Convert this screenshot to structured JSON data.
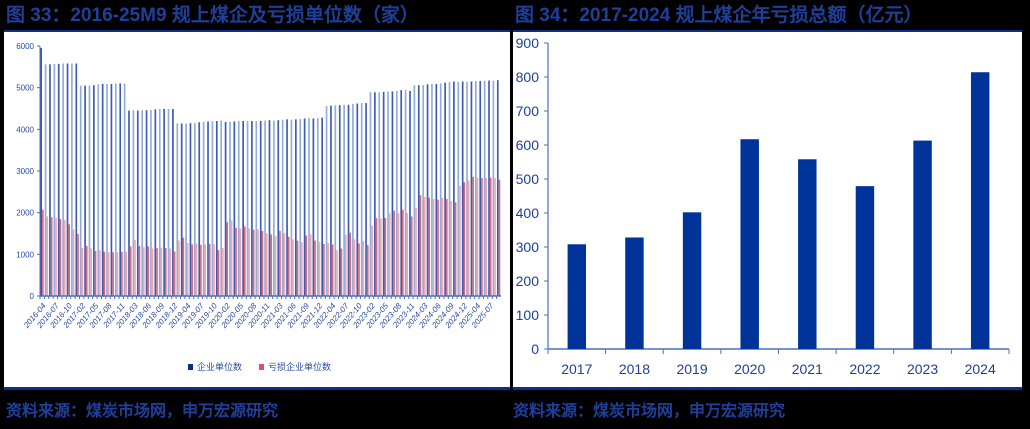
{
  "left": {
    "title": "图 33：2016-25M9 规上煤企及亏损单位数（家）",
    "source": "资料来源：煤炭市场网，申万宏源研究"
  },
  "right": {
    "title": "图 34：2017-2024 规上煤企年亏损总额（亿元）",
    "source": "资料来源：煤炭市场网，申万宏源研究"
  },
  "colors": {
    "title_blue": "#1f3f9a",
    "enterprise_bar": "#3b5bb5",
    "enterprise_bar_light": "#95abd8",
    "loss_bar": "#d96a7a",
    "loss_bar_light": "#f0a9b2",
    "annual_loss_bar": "#003399",
    "axis": "#4a6fc4"
  },
  "chart_data": [
    {
      "type": "bar",
      "title": "2016-25M9 规上煤企及亏损单位数（家）",
      "xlabel": "",
      "ylabel": "",
      "ylim": [
        0,
        6000
      ],
      "yticks": [
        0,
        1000,
        2000,
        3000,
        4000,
        5000,
        6000
      ],
      "legend": [
        "企业单位数",
        "亏损企业单位数"
      ],
      "legend_position": "bottom",
      "grid": false,
      "tick_labels": [
        "2016-04",
        "2016-07",
        "2016-10",
        "2017-02",
        "2017-05",
        "2017-08",
        "2017-11",
        "2018-03",
        "2018-06",
        "2018-09",
        "2018-12",
        "2019-04",
        "2019-07",
        "2019-10",
        "2020-02",
        "2020-05",
        "2020-08",
        "2020-11",
        "2021-03",
        "2021-06",
        "2021-09",
        "2021-12",
        "2022-04",
        "2022-07",
        "2022-10",
        "2023-02",
        "2023-05",
        "2023-08",
        "2023-11",
        "2024-03",
        "2024-06",
        "2024-09",
        "2024-12",
        "2025-04",
        "2025-07"
      ],
      "categories": [
        "2016-04",
        "2016-05",
        "2016-06",
        "2016-07",
        "2016-08",
        "2016-09",
        "2016-10",
        "2016-11",
        "2016-12",
        "2017-02",
        "2017-03",
        "2017-04",
        "2017-05",
        "2017-06",
        "2017-07",
        "2017-08",
        "2017-09",
        "2017-10",
        "2017-11",
        "2017-12",
        "2018-02",
        "2018-03",
        "2018-04",
        "2018-05",
        "2018-06",
        "2018-07",
        "2018-08",
        "2018-09",
        "2018-10",
        "2018-11",
        "2018-12",
        "2019-02",
        "2019-03",
        "2019-04",
        "2019-05",
        "2019-06",
        "2019-07",
        "2019-08",
        "2019-09",
        "2019-10",
        "2019-11",
        "2019-12",
        "2020-02",
        "2020-03",
        "2020-04",
        "2020-05",
        "2020-06",
        "2020-07",
        "2020-08",
        "2020-09",
        "2020-10",
        "2020-11",
        "2020-12",
        "2021-02",
        "2021-03",
        "2021-04",
        "2021-05",
        "2021-06",
        "2021-07",
        "2021-08",
        "2021-09",
        "2021-10",
        "2021-11",
        "2021-12",
        "2022-02",
        "2022-03",
        "2022-04",
        "2022-05",
        "2022-06",
        "2022-07",
        "2022-08",
        "2022-09",
        "2022-10",
        "2022-11",
        "2022-12",
        "2023-02",
        "2023-03",
        "2023-04",
        "2023-05",
        "2023-06",
        "2023-07",
        "2023-08",
        "2023-09",
        "2023-10",
        "2023-11",
        "2023-12",
        "2024-02",
        "2024-03",
        "2024-04",
        "2024-05",
        "2024-06",
        "2024-07",
        "2024-08",
        "2024-09",
        "2024-10",
        "2024-11",
        "2024-12",
        "2025-02",
        "2025-03",
        "2025-04",
        "2025-05",
        "2025-06",
        "2025-07",
        "2025-08",
        "2025-09"
      ],
      "series": [
        {
          "name": "企业单位数",
          "values": [
            5950,
            5560,
            5560,
            5570,
            5570,
            5580,
            5580,
            5580,
            5580,
            5050,
            5050,
            5050,
            5060,
            5080,
            5090,
            5090,
            5090,
            5100,
            5100,
            5100,
            4450,
            4460,
            4450,
            4460,
            4460,
            4460,
            4480,
            4490,
            4490,
            4490,
            4490,
            4140,
            4140,
            4140,
            4150,
            4150,
            4170,
            4180,
            4190,
            4200,
            4200,
            4210,
            4180,
            4180,
            4190,
            4200,
            4200,
            4200,
            4200,
            4200,
            4200,
            4210,
            4220,
            4210,
            4220,
            4230,
            4240,
            4230,
            4240,
            4250,
            4260,
            4270,
            4260,
            4270,
            4280,
            4560,
            4570,
            4580,
            4580,
            4590,
            4590,
            4610,
            4620,
            4630,
            4630,
            4890,
            4890,
            4890,
            4900,
            4910,
            4910,
            4920,
            4940,
            4950,
            4920,
            5060,
            5060,
            5060,
            5080,
            5090,
            5090,
            5100,
            5120,
            5140,
            5150,
            5140,
            5150,
            5140,
            5150,
            5160,
            5160,
            5170,
            5170,
            5170,
            5180
          ],
          "_note": "first bar is 2016-04 (~5950)"
        },
        {
          "name": "亏损企业单位数",
          "values": [
            2070,
            1910,
            1890,
            1880,
            1850,
            1820,
            1720,
            1600,
            1490,
            1150,
            1200,
            1140,
            1080,
            1100,
            1060,
            1050,
            1050,
            1050,
            1060,
            1070,
            1190,
            1340,
            1200,
            1170,
            1190,
            1140,
            1150,
            1160,
            1150,
            1140,
            1070,
            1330,
            1400,
            1270,
            1240,
            1260,
            1230,
            1240,
            1250,
            1240,
            1100,
            1150,
            1770,
            1810,
            1640,
            1620,
            1670,
            1620,
            1590,
            1600,
            1560,
            1500,
            1480,
            1440,
            1560,
            1510,
            1420,
            1360,
            1330,
            1290,
            1450,
            1480,
            1330,
            1290,
            1250,
            1270,
            1240,
            1100,
            1140,
            1470,
            1520,
            1360,
            1260,
            1320,
            1220,
            1690,
            1870,
            1860,
            1870,
            1990,
            2050,
            1990,
            2070,
            1990,
            1910,
            2120,
            2420,
            2380,
            2360,
            2330,
            2310,
            2350,
            2330,
            2280,
            2250,
            2640,
            2730,
            2770,
            2860,
            2840,
            2830,
            2840,
            2840,
            2830,
            2790
          ]
        }
      ]
    },
    {
      "type": "bar",
      "title": "2017-2024 规上煤企年亏损总额（亿元）",
      "xlabel": "",
      "ylabel": "亿元",
      "ylim": [
        0,
        900
      ],
      "yticks": [
        0,
        100,
        200,
        300,
        400,
        500,
        600,
        700,
        800,
        900
      ],
      "grid": false,
      "categories": [
        "2017",
        "2018",
        "2019",
        "2020",
        "2021",
        "2022",
        "2023",
        "2024"
      ],
      "values": [
        308,
        328,
        402,
        617,
        558,
        479,
        613,
        814
      ]
    }
  ]
}
